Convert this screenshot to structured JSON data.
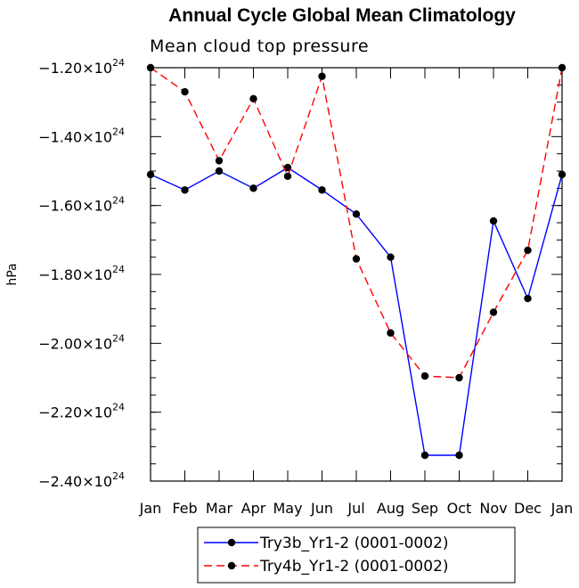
{
  "chart_data": {
    "type": "line",
    "title": "Annual Cycle Global Mean Climatology",
    "subtitle": "Mean cloud top pressure",
    "xlabel": "",
    "ylabel": "hPa",
    "categories": [
      "Jan",
      "Feb",
      "Mar",
      "Apr",
      "May",
      "Jun",
      "Jul",
      "Aug",
      "Sep",
      "Oct",
      "Nov",
      "Dec",
      "Jan"
    ],
    "ylim": [
      -2.4,
      -1.2
    ],
    "y_unit_multiplier": "x10^24",
    "y_ticks": [
      {
        "value": -1.2,
        "mantissa": "−1.20×10",
        "exp": "24"
      },
      {
        "value": -1.4,
        "mantissa": "−1.40×10",
        "exp": "24"
      },
      {
        "value": -1.6,
        "mantissa": "−1.60×10",
        "exp": "24"
      },
      {
        "value": -1.8,
        "mantissa": "−1.80×10",
        "exp": "24"
      },
      {
        "value": -2.0,
        "mantissa": "−2.00×10",
        "exp": "24"
      },
      {
        "value": -2.2,
        "mantissa": "−2.20×10",
        "exp": "24"
      },
      {
        "value": -2.4,
        "mantissa": "−2.40×10",
        "exp": "24"
      }
    ],
    "series": [
      {
        "name": "Try3b_Yr1-2 (0001-0002)",
        "color": "#0000ff",
        "dash": "solid",
        "values": [
          -1.51,
          -1.555,
          -1.5,
          -1.55,
          -1.49,
          -1.555,
          -1.625,
          -1.75,
          -2.325,
          -2.325,
          -1.645,
          -1.87,
          -1.51
        ]
      },
      {
        "name": "Try4b_Yr1-2 (0001-0002)",
        "color": "#ff0000",
        "dash": "dashed",
        "values": [
          -1.2,
          -1.27,
          -1.47,
          -1.29,
          -1.515,
          -1.225,
          -1.755,
          -1.97,
          -2.095,
          -2.1,
          -1.91,
          -1.73,
          -1.2
        ]
      }
    ],
    "legend_position": "bottom"
  }
}
